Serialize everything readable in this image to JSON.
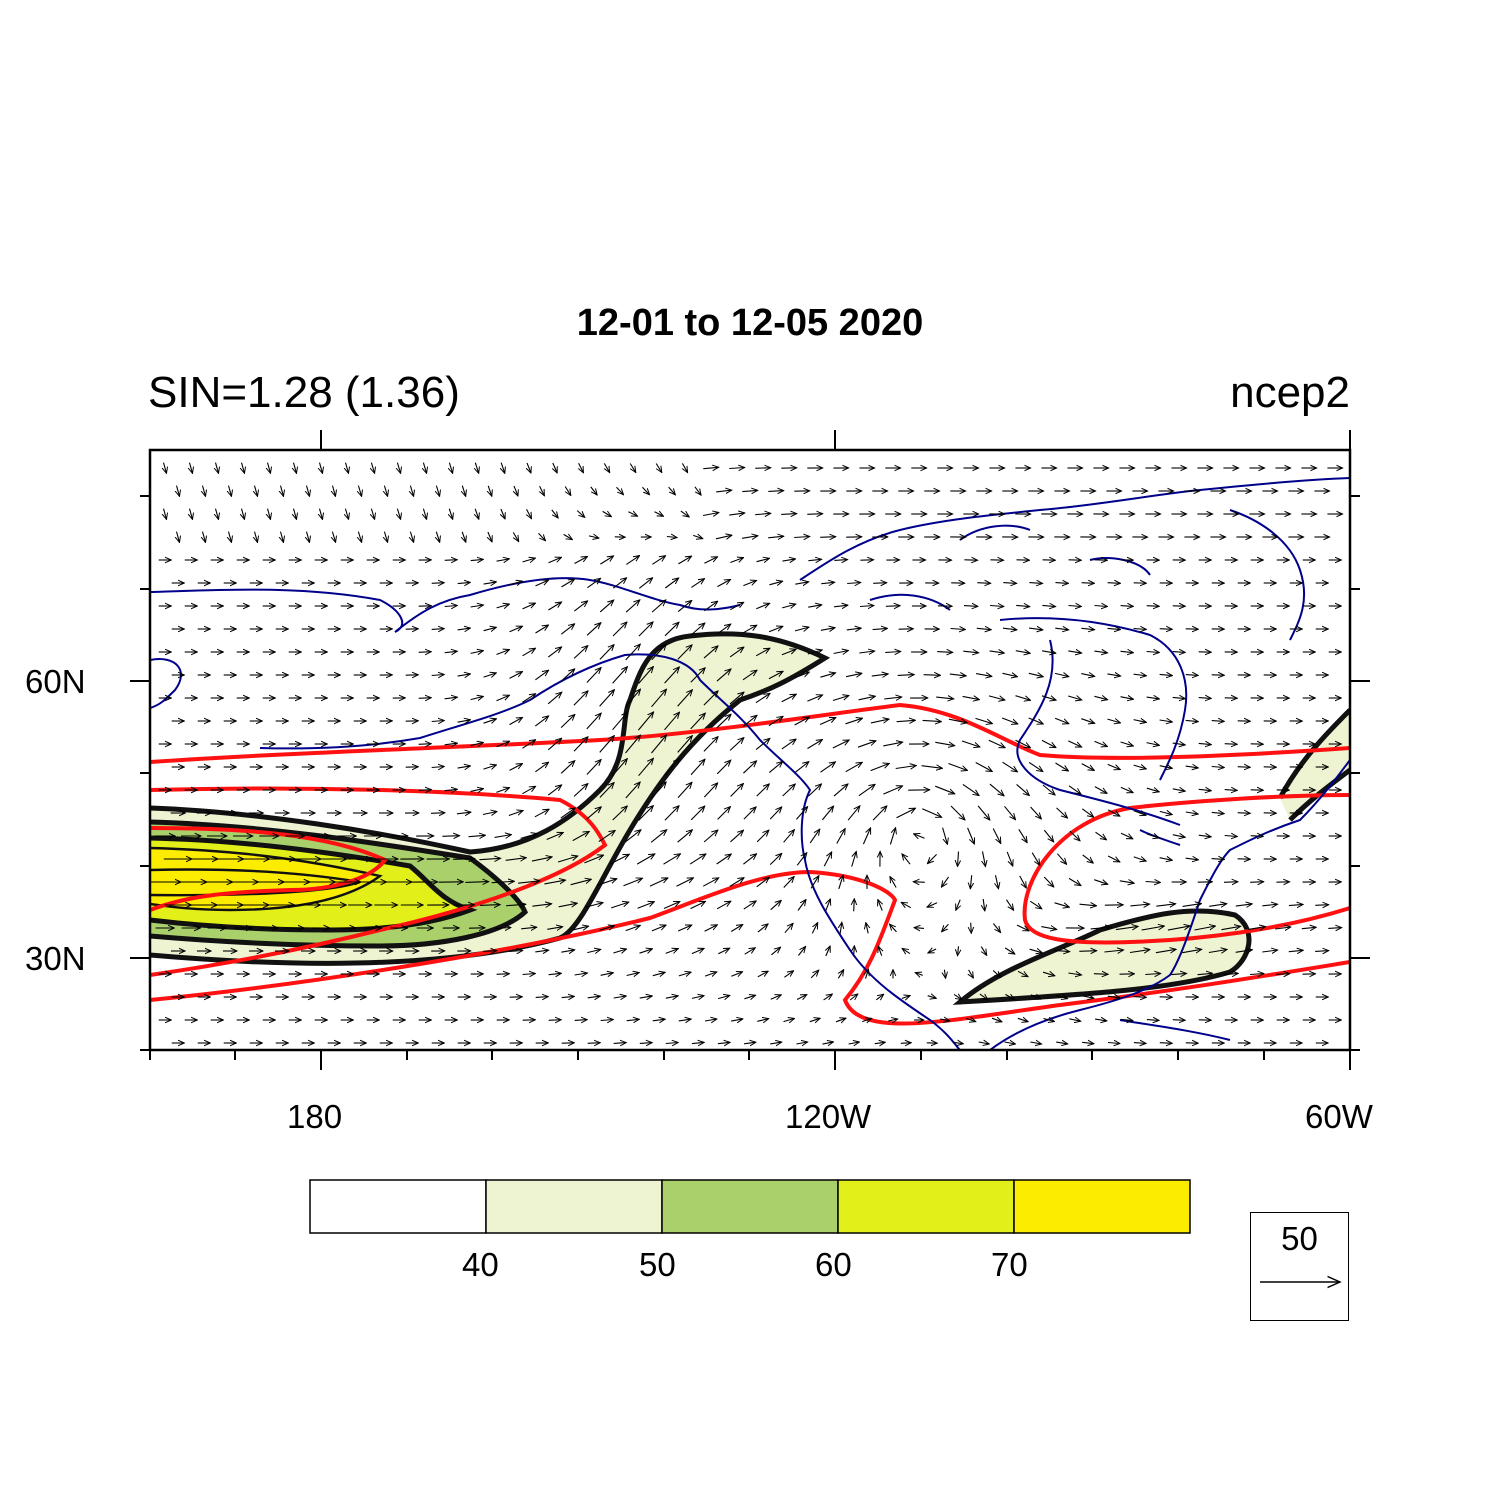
{
  "title": "12-01 to 12-05 2020",
  "left_string": "SIN=1.28 (1.36)",
  "right_string": "ncep2",
  "map": {
    "projection": "cylindrical equidistant",
    "lon_range": [
      "160E",
      "60W"
    ],
    "lat_range": [
      "20N",
      "85N"
    ],
    "lat_labels": [
      "60N",
      "30N"
    ],
    "lon_labels": [
      "180",
      "120W",
      "60W"
    ],
    "coastline_color": "#00008b",
    "vector_color": "#000000",
    "red_contour_color": "#ff0000",
    "black_contour_color": "#111111"
  },
  "colorbar": {
    "levels": [
      "40",
      "50",
      "60",
      "70"
    ],
    "colors": [
      "#ffffff",
      "#eef4d2",
      "#a9d06b",
      "#e2ef18",
      "#fced00"
    ]
  },
  "vector_reference": {
    "magnitude": "50",
    "icon": "right-arrow-icon"
  }
}
